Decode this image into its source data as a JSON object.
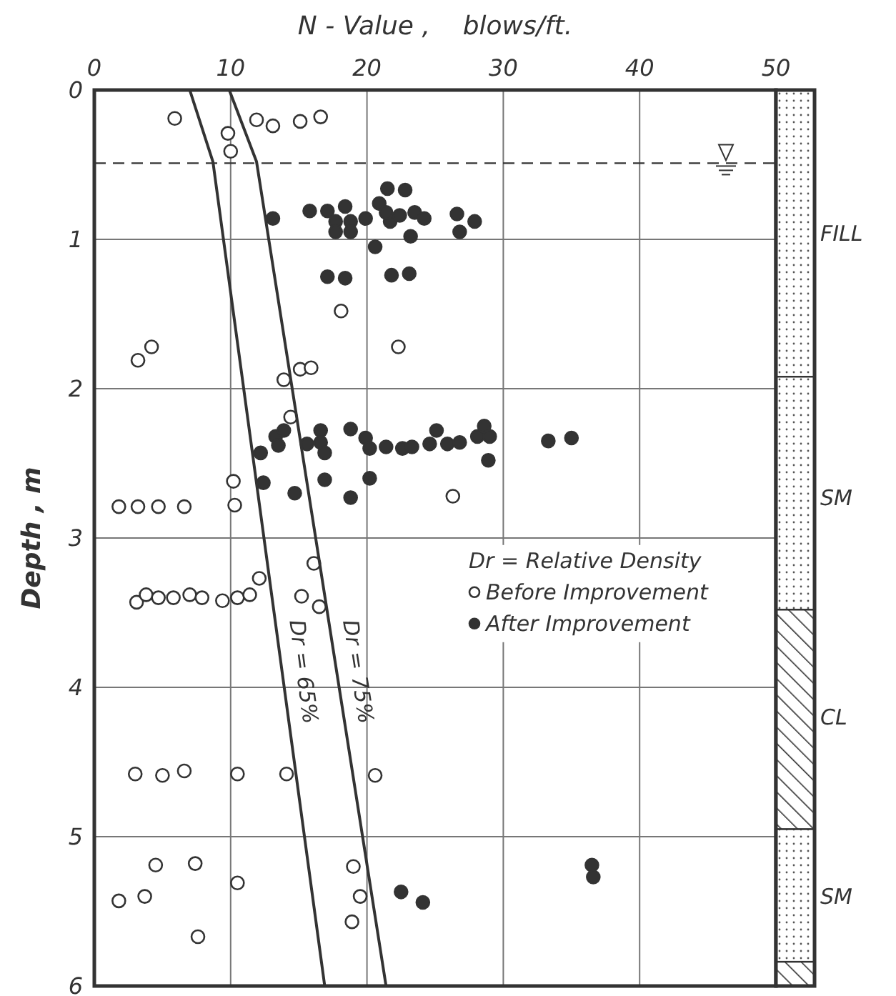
{
  "chart_data": {
    "type": "scatter",
    "xlabel": "N - Value ,    blows/ft.",
    "ylabel": "Depth , m",
    "xlim": [
      0,
      50
    ],
    "xticks": [
      0,
      10,
      20,
      30,
      40,
      50
    ],
    "ylim": [
      6,
      0
    ],
    "yticks": [
      0,
      1,
      2,
      3,
      4,
      5,
      6
    ],
    "grid": true,
    "marker": "circle",
    "legend": "right",
    "legend_title": "Dr = Relative Density",
    "series": [
      {
        "name": "Before Improvement",
        "color": "#ffffff",
        "x": [
          5.9,
          9.8,
          10.0,
          11.9,
          13.1,
          15.1,
          16.6,
          18.1,
          4.2,
          3.2,
          22.3,
          13.9,
          15.1,
          15.9,
          14.4,
          10.2,
          10.3,
          1.8,
          3.2,
          4.7,
          6.6,
          26.3,
          16.1,
          12.1,
          3.1,
          3.8,
          4.7,
          5.8,
          7.0,
          7.9,
          9.4,
          10.5,
          11.4,
          15.2,
          16.5,
          3.0,
          5.0,
          6.6,
          10.5,
          14.1,
          20.6,
          4.5,
          7.4,
          1.8,
          3.7,
          10.5,
          7.6,
          19.0,
          19.5,
          18.9
        ],
        "values": [
          0.19,
          0.29,
          0.41,
          0.2,
          0.24,
          0.21,
          0.18,
          1.48,
          1.72,
          1.81,
          1.72,
          1.94,
          1.87,
          1.86,
          2.19,
          2.62,
          2.78,
          2.79,
          2.79,
          2.79,
          2.79,
          2.72,
          3.17,
          3.27,
          3.43,
          3.38,
          3.4,
          3.4,
          3.38,
          3.4,
          3.42,
          3.4,
          3.38,
          3.39,
          3.46,
          4.58,
          4.59,
          4.56,
          4.58,
          4.58,
          4.59,
          5.19,
          5.18,
          5.43,
          5.4,
          5.31,
          5.67,
          5.2,
          5.4,
          5.57
        ]
      },
      {
        "name": "After Improvement",
        "color": "#333333",
        "x": [
          13.1,
          15.8,
          17.1,
          18.4,
          17.7,
          18.8,
          17.7,
          18.8,
          19.9,
          20.6,
          20.9,
          21.5,
          22.8,
          21.7,
          22.4,
          21.4,
          23.5,
          24.2,
          23.2,
          26.6,
          27.9,
          26.8,
          17.1,
          18.4,
          21.8,
          23.1,
          12.2,
          12.4,
          13.3,
          13.9,
          13.5,
          14.7,
          15.6,
          16.6,
          16.6,
          16.9,
          16.9,
          18.8,
          18.8,
          19.9,
          20.2,
          20.2,
          21.4,
          22.6,
          23.3,
          24.6,
          25.1,
          25.9,
          26.8,
          28.1,
          28.6,
          29.0,
          28.9,
          33.3,
          35.0,
          22.5,
          24.1,
          36.5,
          36.6
        ],
        "values": [
          0.86,
          0.81,
          0.81,
          0.78,
          0.88,
          0.88,
          0.95,
          0.95,
          0.86,
          1.05,
          0.76,
          0.66,
          0.67,
          0.88,
          0.84,
          0.82,
          0.82,
          0.86,
          0.98,
          0.83,
          0.88,
          0.95,
          1.25,
          1.26,
          1.24,
          1.23,
          2.43,
          2.63,
          2.32,
          2.28,
          2.38,
          2.7,
          2.37,
          2.28,
          2.36,
          2.43,
          2.61,
          2.27,
          2.73,
          2.33,
          2.4,
          2.6,
          2.39,
          2.4,
          2.39,
          2.37,
          2.28,
          2.37,
          2.36,
          2.32,
          2.25,
          2.32,
          2.48,
          2.35,
          2.33,
          5.37,
          5.44,
          5.19,
          5.27
        ]
      },
      {
        "name": "Dr = 65%",
        "type": "line",
        "marker": "none",
        "color": "#333333",
        "x": [
          7.0,
          8.7,
          16.9
        ],
        "values": [
          0,
          0.48,
          6
        ]
      },
      {
        "name": "Dr = 75%",
        "type": "line",
        "marker": "none",
        "color": "#333333",
        "x": [
          9.9,
          11.9,
          21.4
        ],
        "values": [
          0,
          0.48,
          6
        ]
      }
    ],
    "ref_lines": [
      {
        "axis": "y",
        "value": 0.49,
        "line_style": "dashed",
        "color": "#333333"
      }
    ],
    "annotations": [
      "FILL",
      "SM",
      "CL",
      "SM"
    ]
  }
}
